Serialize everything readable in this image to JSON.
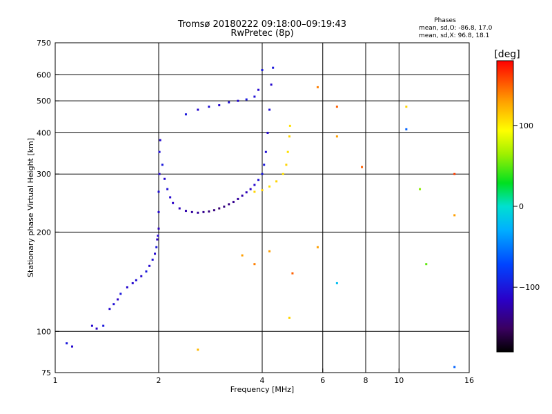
{
  "header": {
    "title_line1": "Tromsø 20180222 09:18:00–09:19:43",
    "title_line2": "RwPretec (8p)",
    "phases_label": "Phases",
    "phases_o": "mean, sd,O: -86.8, 17.0",
    "phases_x": "mean, sd,X:  96.8, 18.1"
  },
  "colorbar": {
    "unit": "[deg]",
    "ticks": [
      {
        "value": 100,
        "label": "100"
      },
      {
        "value": 0,
        "label": "0"
      },
      {
        "value": -100,
        "label": "−100"
      }
    ],
    "range": [
      -180,
      180
    ]
  },
  "chart_data": {
    "type": "scatter",
    "title": "Tromsø 20180222 09:18:00–09:19:43",
    "subtitle": "RwPretec (8p)",
    "xlabel": "Frequency [MHz]",
    "ylabel": "Stationary phase Virtual Height [km]",
    "x_scale": "log",
    "y_scale": "log",
    "xlim": [
      1,
      16
    ],
    "ylim": [
      75,
      750
    ],
    "x_ticks": [
      {
        "value": 1,
        "label": "1"
      },
      {
        "value": 2,
        "label": "2"
      },
      {
        "value": 4,
        "label": "4"
      },
      {
        "value": 6,
        "label": "6"
      },
      {
        "value": 8,
        "label": "8"
      },
      {
        "value": 10,
        "label": "10"
      },
      {
        "value": 16,
        "label": "16"
      }
    ],
    "y_ticks": [
      {
        "value": 75,
        "label": "75"
      },
      {
        "value": 100,
        "label": "100"
      },
      {
        "value": 200,
        "label": "200"
      },
      {
        "value": 300,
        "label": "300"
      },
      {
        "value": 400,
        "label": "400"
      },
      {
        "value": 500,
        "label": "500"
      },
      {
        "value": 600,
        "label": "600"
      },
      {
        "value": 750,
        "label": "750"
      }
    ],
    "x_grid": [
      2,
      4,
      6,
      8,
      10
    ],
    "y_grid": [
      100,
      200,
      300,
      400,
      500,
      600
    ],
    "grid": true,
    "color_scale": "rainbow phase, -180 (black) to 180 (red)",
    "series": [
      {
        "points": [
          [
            1.08,
            92,
            -100
          ],
          [
            1.12,
            90,
            -110
          ],
          [
            1.28,
            104,
            -110
          ],
          [
            1.32,
            102,
            -115
          ],
          [
            1.38,
            104,
            -100
          ],
          [
            1.44,
            117,
            -110
          ],
          [
            1.48,
            121,
            -105
          ],
          [
            1.52,
            125,
            -115
          ],
          [
            1.55,
            130,
            -100
          ],
          [
            1.62,
            136,
            -110
          ],
          [
            1.68,
            140,
            -110
          ],
          [
            1.72,
            143,
            -105
          ],
          [
            1.78,
            147,
            -110
          ],
          [
            1.84,
            152,
            -100
          ],
          [
            1.88,
            158,
            -110
          ],
          [
            1.92,
            165,
            -105
          ],
          [
            1.95,
            172,
            -110
          ],
          [
            1.97,
            180,
            -100
          ],
          [
            1.98,
            190,
            -115
          ],
          [
            1.99,
            195,
            -110
          ],
          [
            2.0,
            205,
            -120
          ],
          [
            2.0,
            230,
            -110
          ],
          [
            2.0,
            265,
            -105
          ],
          [
            2.01,
            300,
            -110
          ],
          [
            2.01,
            350,
            -105
          ],
          [
            2.02,
            380,
            -110
          ],
          [
            2.05,
            320,
            -100
          ],
          [
            2.08,
            290,
            -110
          ],
          [
            2.12,
            270,
            -105
          ],
          [
            2.16,
            255,
            -110
          ],
          [
            2.2,
            245,
            -115
          ],
          [
            2.3,
            236,
            -120
          ],
          [
            2.4,
            232,
            -125
          ],
          [
            2.5,
            230,
            -130
          ],
          [
            2.6,
            229,
            -130
          ],
          [
            2.7,
            230,
            -135
          ],
          [
            2.8,
            231,
            -140
          ],
          [
            2.9,
            233,
            -140
          ],
          [
            3.0,
            236,
            -145
          ],
          [
            3.1,
            239,
            -140
          ],
          [
            3.2,
            243,
            -140
          ],
          [
            3.3,
            247,
            -135
          ],
          [
            3.4,
            252,
            -130
          ],
          [
            3.5,
            258,
            -125
          ],
          [
            3.6,
            264,
            -120
          ],
          [
            3.7,
            270,
            -115
          ],
          [
            3.8,
            278,
            -110
          ],
          [
            3.9,
            288,
            -105
          ],
          [
            4.0,
            300,
            -100
          ],
          [
            4.05,
            320,
            -100
          ],
          [
            4.1,
            350,
            -105
          ],
          [
            4.15,
            400,
            -110
          ],
          [
            4.2,
            470,
            -105
          ],
          [
            4.25,
            560,
            -110
          ],
          [
            4.3,
            630,
            -100
          ],
          [
            2.4,
            455,
            -100
          ],
          [
            2.6,
            470,
            -110
          ],
          [
            2.8,
            480,
            -105
          ],
          [
            3.0,
            485,
            -110
          ],
          [
            3.2,
            495,
            -105
          ],
          [
            3.4,
            500,
            -110
          ],
          [
            3.6,
            505,
            -100
          ],
          [
            3.8,
            515,
            -105
          ],
          [
            3.9,
            540,
            -110
          ],
          [
            4.0,
            620,
            -100
          ],
          [
            3.8,
            265,
            110
          ],
          [
            4.0,
            268,
            110
          ],
          [
            4.2,
            275,
            105
          ],
          [
            4.4,
            285,
            110
          ],
          [
            4.6,
            300,
            105
          ],
          [
            4.7,
            320,
            110
          ],
          [
            4.75,
            350,
            105
          ],
          [
            4.8,
            390,
            110
          ],
          [
            4.82,
            420,
            105
          ],
          [
            5.8,
            550,
            140
          ],
          [
            6.6,
            480,
            150
          ],
          [
            6.6,
            390,
            130
          ],
          [
            6.6,
            140,
            -20
          ],
          [
            7.8,
            315,
            150
          ],
          [
            10.5,
            480,
            110
          ],
          [
            10.5,
            410,
            -60
          ],
          [
            11.5,
            270,
            60
          ],
          [
            12.0,
            160,
            50
          ],
          [
            14.5,
            300,
            160
          ],
          [
            14.5,
            225,
            130
          ],
          [
            14.5,
            78,
            -60
          ],
          [
            5.8,
            180,
            130
          ],
          [
            4.8,
            110,
            110
          ],
          [
            2.6,
            88,
            120
          ],
          [
            3.5,
            170,
            130
          ],
          [
            3.8,
            160,
            140
          ],
          [
            4.2,
            175,
            130
          ],
          [
            4.9,
            150,
            150
          ]
        ]
      }
    ]
  }
}
